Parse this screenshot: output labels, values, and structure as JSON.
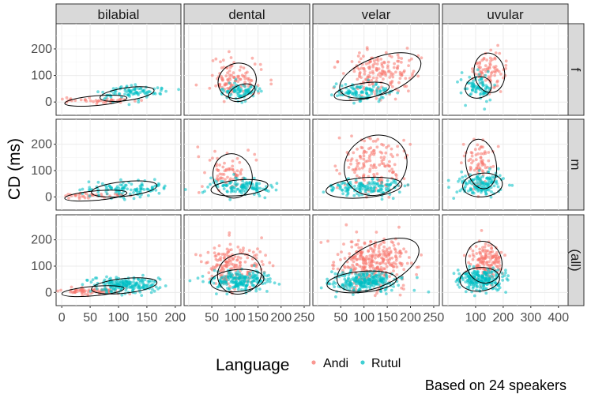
{
  "chart_data": {
    "type": "scatter",
    "title": "",
    "ylabel": "CD (ms)",
    "xlabel": "",
    "caption": "Based on 24 speakers",
    "legend": {
      "title": "Language",
      "placement": "bottom",
      "entries": [
        {
          "name": "Andi",
          "color": "#F8766D"
        },
        {
          "name": "Rutul",
          "color": "#00BFC4"
        }
      ]
    },
    "columns": [
      {
        "label": "bilabial",
        "xlim": [
          -10,
          210
        ],
        "xticks": [
          0,
          50,
          100,
          150,
          200
        ],
        "xtick_labels": [
          "0",
          "50",
          "100",
          "150",
          "200"
        ]
      },
      {
        "label": "dental",
        "xlim": [
          -10,
          262
        ],
        "xticks": [
          50,
          100,
          150,
          200,
          250
        ],
        "xtick_labels": [
          "50",
          "100",
          "150",
          "200",
          "250"
        ]
      },
      {
        "label": "velar",
        "xlim": [
          -10,
          262
        ],
        "xticks": [
          50,
          100,
          150,
          200,
          250
        ],
        "xtick_labels": [
          "50",
          "100",
          "150",
          "200",
          "250"
        ]
      },
      {
        "label": "uvular",
        "xlim": [
          -20,
          435
        ],
        "xticks": [
          100,
          200,
          300,
          400
        ],
        "xtick_labels": [
          "100",
          "200",
          "300",
          "400"
        ]
      }
    ],
    "rows": [
      {
        "label": "f",
        "ylim": [
          -50,
          295
        ],
        "yticks": [
          0,
          100,
          200
        ],
        "ytick_labels": [
          "0",
          "100",
          "200"
        ]
      },
      {
        "label": "m",
        "ylim": [
          -50,
          295
        ],
        "yticks": [
          0,
          100,
          200
        ],
        "ytick_labels": [
          "0",
          "100",
          "200"
        ]
      },
      {
        "label": "(all)",
        "ylim": [
          -50,
          295
        ],
        "yticks": [
          0,
          100,
          200
        ],
        "ytick_labels": [
          "0",
          "100",
          "200"
        ]
      }
    ],
    "clusters": [
      {
        "row": 0,
        "col": 0,
        "series": "Andi",
        "cx": 60,
        "cy": 5,
        "sx": 30,
        "sy": 6,
        "n": 40
      },
      {
        "row": 0,
        "col": 0,
        "series": "Rutul",
        "cx": 120,
        "cy": 35,
        "sx": 28,
        "sy": 15,
        "n": 90
      },
      {
        "row": 0,
        "col": 1,
        "series": "Andi",
        "cx": 95,
        "cy": 85,
        "sx": 28,
        "sy": 35,
        "n": 110
      },
      {
        "row": 0,
        "col": 1,
        "series": "Rutul",
        "cx": 115,
        "cy": 40,
        "sx": 20,
        "sy": 15,
        "n": 80
      },
      {
        "row": 0,
        "col": 2,
        "series": "Andi",
        "cx": 135,
        "cy": 110,
        "sx": 38,
        "sy": 40,
        "n": 170
      },
      {
        "row": 0,
        "col": 2,
        "series": "Rutul",
        "cx": 95,
        "cy": 40,
        "sx": 28,
        "sy": 15,
        "n": 110
      },
      {
        "row": 0,
        "col": 3,
        "series": "Andi",
        "cx": 150,
        "cy": 120,
        "sx": 30,
        "sy": 35,
        "n": 80
      },
      {
        "row": 0,
        "col": 3,
        "series": "Rutul",
        "cx": 110,
        "cy": 55,
        "sx": 30,
        "sy": 25,
        "n": 80
      },
      {
        "row": 1,
        "col": 0,
        "series": "Andi",
        "cx": 55,
        "cy": 5,
        "sx": 30,
        "sy": 6,
        "n": 40
      },
      {
        "row": 1,
        "col": 0,
        "series": "Rutul",
        "cx": 110,
        "cy": 30,
        "sx": 35,
        "sy": 15,
        "n": 110
      },
      {
        "row": 1,
        "col": 1,
        "series": "Andi",
        "cx": 85,
        "cy": 100,
        "sx": 25,
        "sy": 35,
        "n": 70
      },
      {
        "row": 1,
        "col": 1,
        "series": "Rutul",
        "cx": 110,
        "cy": 40,
        "sx": 35,
        "sy": 15,
        "n": 120
      },
      {
        "row": 1,
        "col": 2,
        "series": "Andi",
        "cx": 120,
        "cy": 120,
        "sx": 35,
        "sy": 50,
        "n": 150
      },
      {
        "row": 1,
        "col": 2,
        "series": "Rutul",
        "cx": 100,
        "cy": 35,
        "sx": 45,
        "sy": 15,
        "n": 140
      },
      {
        "row": 1,
        "col": 3,
        "series": "Andi",
        "cx": 110,
        "cy": 130,
        "sx": 28,
        "sy": 45,
        "n": 70
      },
      {
        "row": 1,
        "col": 3,
        "series": "Rutul",
        "cx": 120,
        "cy": 50,
        "sx": 45,
        "sy": 20,
        "n": 140
      },
      {
        "row": 2,
        "col": 0,
        "series": "Andi",
        "cx": 55,
        "cy": 5,
        "sx": 30,
        "sy": 6,
        "n": 70
      },
      {
        "row": 2,
        "col": 0,
        "series": "Rutul",
        "cx": 115,
        "cy": 30,
        "sx": 32,
        "sy": 15,
        "n": 200
      },
      {
        "row": 2,
        "col": 1,
        "series": "Andi",
        "cx": 100,
        "cy": 100,
        "sx": 30,
        "sy": 40,
        "n": 180
      },
      {
        "row": 2,
        "col": 1,
        "series": "Rutul",
        "cx": 110,
        "cy": 45,
        "sx": 35,
        "sy": 18,
        "n": 200
      },
      {
        "row": 2,
        "col": 2,
        "series": "Andi",
        "cx": 120,
        "cy": 110,
        "sx": 40,
        "sy": 45,
        "n": 300
      },
      {
        "row": 2,
        "col": 2,
        "series": "Rutul",
        "cx": 100,
        "cy": 40,
        "sx": 38,
        "sy": 18,
        "n": 250
      },
      {
        "row": 2,
        "col": 3,
        "series": "Andi",
        "cx": 140,
        "cy": 120,
        "sx": 30,
        "sy": 40,
        "n": 150
      },
      {
        "row": 2,
        "col": 3,
        "series": "Rutul",
        "cx": 115,
        "cy": 50,
        "sx": 40,
        "sy": 22,
        "n": 220
      }
    ],
    "ellipses": [
      {
        "row": 0,
        "col": 0,
        "series": "Andi",
        "cx": 60,
        "cy": 5,
        "rx": 55,
        "ry": 18,
        "angle": 5
      },
      {
        "row": 0,
        "col": 0,
        "series": "Rutul",
        "cx": 115,
        "cy": 30,
        "rx": 48,
        "ry": 24,
        "angle": 8
      },
      {
        "row": 0,
        "col": 1,
        "series": "Andi",
        "cx": 105,
        "cy": 80,
        "rx": 42,
        "ry": 65,
        "angle": 25
      },
      {
        "row": 0,
        "col": 1,
        "series": "Rutul",
        "cx": 115,
        "cy": 35,
        "rx": 30,
        "ry": 30,
        "angle": 20
      },
      {
        "row": 0,
        "col": 2,
        "series": "Andi",
        "cx": 135,
        "cy": 100,
        "rx": 92,
        "ry": 70,
        "angle": 20
      },
      {
        "row": 0,
        "col": 2,
        "series": "Rutul",
        "cx": 95,
        "cy": 40,
        "rx": 60,
        "ry": 30,
        "angle": 10
      },
      {
        "row": 0,
        "col": 3,
        "series": "Andi",
        "cx": 150,
        "cy": 110,
        "rx": 55,
        "ry": 75,
        "angle": 10
      },
      {
        "row": 0,
        "col": 3,
        "series": "Rutul",
        "cx": 110,
        "cy": 55,
        "rx": 48,
        "ry": 40,
        "angle": 15
      },
      {
        "row": 1,
        "col": 0,
        "series": "Andi",
        "cx": 60,
        "cy": 5,
        "rx": 55,
        "ry": 18,
        "angle": 5
      },
      {
        "row": 1,
        "col": 0,
        "series": "Rutul",
        "cx": 110,
        "cy": 30,
        "rx": 58,
        "ry": 28,
        "angle": 6
      },
      {
        "row": 1,
        "col": 1,
        "series": "Andi",
        "cx": 95,
        "cy": 80,
        "rx": 42,
        "ry": 85,
        "angle": 15
      },
      {
        "row": 1,
        "col": 1,
        "series": "Rutul",
        "cx": 110,
        "cy": 35,
        "rx": 62,
        "ry": 30,
        "angle": 5
      },
      {
        "row": 1,
        "col": 2,
        "series": "Andi",
        "cx": 125,
        "cy": 120,
        "rx": 70,
        "ry": 110,
        "angle": 35
      },
      {
        "row": 1,
        "col": 2,
        "series": "Rutul",
        "cx": 100,
        "cy": 35,
        "rx": 82,
        "ry": 38,
        "angle": 5
      },
      {
        "row": 1,
        "col": 3,
        "series": "Andi",
        "cx": 120,
        "cy": 125,
        "rx": 55,
        "ry": 95,
        "angle": 10
      },
      {
        "row": 1,
        "col": 3,
        "series": "Rutul",
        "cx": 125,
        "cy": 45,
        "rx": 72,
        "ry": 45,
        "angle": 5
      },
      {
        "row": 2,
        "col": 0,
        "series": "Andi",
        "cx": 55,
        "cy": 5,
        "rx": 55,
        "ry": 18,
        "angle": 5
      },
      {
        "row": 2,
        "col": 0,
        "series": "Rutul",
        "cx": 110,
        "cy": 25,
        "rx": 58,
        "ry": 28,
        "angle": 6
      },
      {
        "row": 2,
        "col": 1,
        "series": "Andi",
        "cx": 110,
        "cy": 70,
        "rx": 48,
        "ry": 75,
        "angle": 20
      },
      {
        "row": 2,
        "col": 1,
        "series": "Rutul",
        "cx": 105,
        "cy": 45,
        "rx": 58,
        "ry": 42,
        "angle": 5
      },
      {
        "row": 2,
        "col": 2,
        "series": "Andi",
        "cx": 130,
        "cy": 105,
        "rx": 95,
        "ry": 80,
        "angle": 25
      },
      {
        "row": 2,
        "col": 2,
        "series": "Rutul",
        "cx": 95,
        "cy": 40,
        "rx": 75,
        "ry": 40,
        "angle": 5
      },
      {
        "row": 2,
        "col": 3,
        "series": "Andi",
        "cx": 130,
        "cy": 115,
        "rx": 65,
        "ry": 80,
        "angle": 15
      },
      {
        "row": 2,
        "col": 3,
        "series": "Rutul",
        "cx": 115,
        "cy": 50,
        "rx": 72,
        "ry": 45,
        "angle": 5
      }
    ]
  }
}
